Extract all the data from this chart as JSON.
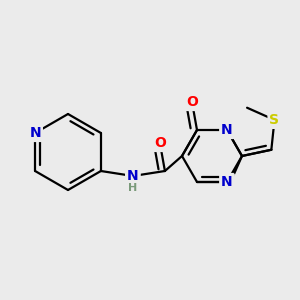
{
  "background_color": "#ebebeb",
  "atom_colors": {
    "C": "#000000",
    "N": "#0000cc",
    "O": "#ff0000",
    "S": "#cccc00",
    "H": "#7a9a7a"
  },
  "bond_color": "#000000",
  "bond_width": 1.6,
  "font_size_atom": 10,
  "font_size_methyl": 8
}
